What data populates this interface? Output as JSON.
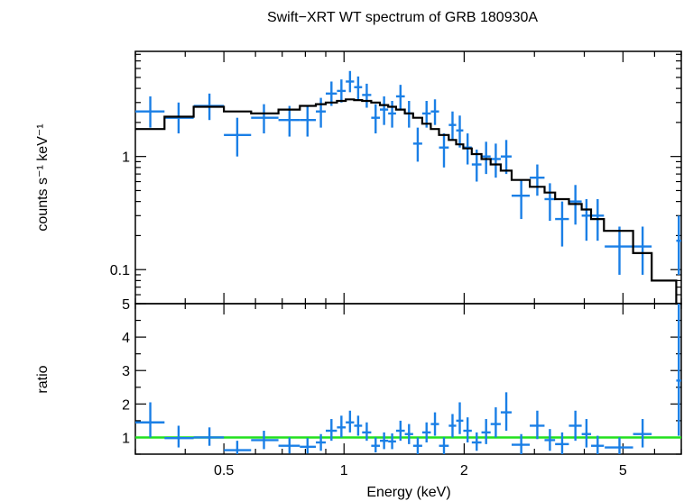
{
  "chart_data": {
    "type": "scatter",
    "title": "Swift−XRT WT spectrum of GRB 180930A",
    "xlabel": "Energy (keV)",
    "x_scale": "log",
    "xlim": [
      0.3,
      7.0
    ],
    "x_ticks": [
      {
        "value": 0.5,
        "label": "0.5"
      },
      {
        "value": 1,
        "label": "1"
      },
      {
        "value": 2,
        "label": "2"
      },
      {
        "value": 5,
        "label": "5"
      }
    ],
    "colors": {
      "data": "#1a7fe6",
      "model": "#000000",
      "unity": "#22e01e"
    },
    "panels": [
      {
        "name": "spectrum",
        "ylabel": "counts s⁻¹ keV⁻¹",
        "y_scale": "log",
        "ylim": [
          0.05,
          8.5
        ],
        "y_ticks": [
          {
            "value": 0.1,
            "label": "0.1"
          },
          {
            "value": 1,
            "label": "1"
          }
        ],
        "series": [
          {
            "kind": "data",
            "points": [
              {
                "x": 0.327,
                "xlo": 0.3,
                "xhi": 0.355,
                "y": 2.5,
                "ylo": 1.8,
                "yhi": 3.4
              },
              {
                "x": 0.385,
                "xlo": 0.355,
                "xhi": 0.42,
                "y": 2.2,
                "ylo": 1.6,
                "yhi": 3.0
              },
              {
                "x": 0.46,
                "xlo": 0.42,
                "xhi": 0.5,
                "y": 2.8,
                "ylo": 2.1,
                "yhi": 3.6
              },
              {
                "x": 0.54,
                "xlo": 0.5,
                "xhi": 0.585,
                "y": 1.55,
                "ylo": 1.0,
                "yhi": 2.2
              },
              {
                "x": 0.63,
                "xlo": 0.585,
                "xhi": 0.685,
                "y": 2.2,
                "ylo": 1.6,
                "yhi": 2.9
              },
              {
                "x": 0.73,
                "xlo": 0.685,
                "xhi": 0.775,
                "y": 2.1,
                "ylo": 1.5,
                "yhi": 2.8
              },
              {
                "x": 0.81,
                "xlo": 0.775,
                "xhi": 0.85,
                "y": 2.1,
                "ylo": 1.5,
                "yhi": 2.8
              },
              {
                "x": 0.875,
                "xlo": 0.85,
                "xhi": 0.9,
                "y": 2.5,
                "ylo": 1.8,
                "yhi": 3.3
              },
              {
                "x": 0.93,
                "xlo": 0.9,
                "xhi": 0.96,
                "y": 3.6,
                "ylo": 2.8,
                "yhi": 4.6
              },
              {
                "x": 0.985,
                "xlo": 0.96,
                "xhi": 1.01,
                "y": 3.8,
                "ylo": 3.0,
                "yhi": 4.8
              },
              {
                "x": 1.035,
                "xlo": 1.01,
                "xhi": 1.06,
                "y": 4.6,
                "ylo": 3.7,
                "yhi": 5.7
              },
              {
                "x": 1.085,
                "xlo": 1.06,
                "xhi": 1.11,
                "y": 4.1,
                "ylo": 3.2,
                "yhi": 5.1
              },
              {
                "x": 1.14,
                "xlo": 1.11,
                "xhi": 1.17,
                "y": 3.5,
                "ylo": 2.7,
                "yhi": 4.4
              },
              {
                "x": 1.2,
                "xlo": 1.17,
                "xhi": 1.23,
                "y": 2.2,
                "ylo": 1.6,
                "yhi": 2.9
              },
              {
                "x": 1.26,
                "xlo": 1.23,
                "xhi": 1.29,
                "y": 2.6,
                "ylo": 1.9,
                "yhi": 3.4
              },
              {
                "x": 1.32,
                "xlo": 1.29,
                "xhi": 1.35,
                "y": 2.4,
                "ylo": 1.8,
                "yhi": 3.1
              },
              {
                "x": 1.385,
                "xlo": 1.35,
                "xhi": 1.42,
                "y": 3.4,
                "ylo": 2.6,
                "yhi": 4.3
              },
              {
                "x": 1.455,
                "xlo": 1.42,
                "xhi": 1.49,
                "y": 2.4,
                "ylo": 1.8,
                "yhi": 3.1
              },
              {
                "x": 1.53,
                "xlo": 1.49,
                "xhi": 1.57,
                "y": 1.3,
                "ylo": 0.9,
                "yhi": 1.8
              },
              {
                "x": 1.61,
                "xlo": 1.57,
                "xhi": 1.65,
                "y": 2.4,
                "ylo": 1.8,
                "yhi": 3.1
              },
              {
                "x": 1.69,
                "xlo": 1.65,
                "xhi": 1.73,
                "y": 2.5,
                "ylo": 1.9,
                "yhi": 3.2
              },
              {
                "x": 1.78,
                "xlo": 1.73,
                "xhi": 1.83,
                "y": 1.2,
                "ylo": 0.8,
                "yhi": 1.6
              },
              {
                "x": 1.87,
                "xlo": 1.83,
                "xhi": 1.91,
                "y": 1.9,
                "ylo": 1.4,
                "yhi": 2.5
              },
              {
                "x": 1.95,
                "xlo": 1.91,
                "xhi": 1.99,
                "y": 1.7,
                "ylo": 1.2,
                "yhi": 2.3
              },
              {
                "x": 2.04,
                "xlo": 1.99,
                "xhi": 2.09,
                "y": 1.2,
                "ylo": 0.85,
                "yhi": 1.6
              },
              {
                "x": 2.15,
                "xlo": 2.09,
                "xhi": 2.21,
                "y": 0.85,
                "ylo": 0.6,
                "yhi": 1.15
              },
              {
                "x": 2.27,
                "xlo": 2.21,
                "xhi": 2.33,
                "y": 1.0,
                "ylo": 0.7,
                "yhi": 1.35
              },
              {
                "x": 2.4,
                "xlo": 2.33,
                "xhi": 2.47,
                "y": 0.95,
                "ylo": 0.65,
                "yhi": 1.3
              },
              {
                "x": 2.55,
                "xlo": 2.47,
                "xhi": 2.63,
                "y": 1.0,
                "ylo": 0.7,
                "yhi": 1.4
              },
              {
                "x": 2.78,
                "xlo": 2.63,
                "xhi": 2.92,
                "y": 0.45,
                "ylo": 0.28,
                "yhi": 0.62
              },
              {
                "x": 3.05,
                "xlo": 2.92,
                "xhi": 3.18,
                "y": 0.65,
                "ylo": 0.45,
                "yhi": 0.85
              },
              {
                "x": 3.28,
                "xlo": 3.18,
                "xhi": 3.38,
                "y": 0.42,
                "ylo": 0.27,
                "yhi": 0.58
              },
              {
                "x": 3.52,
                "xlo": 3.38,
                "xhi": 3.66,
                "y": 0.28,
                "ylo": 0.16,
                "yhi": 0.4
              },
              {
                "x": 3.8,
                "xlo": 3.66,
                "xhi": 3.94,
                "y": 0.4,
                "ylo": 0.25,
                "yhi": 0.56
              },
              {
                "x": 4.05,
                "xlo": 3.94,
                "xhi": 4.16,
                "y": 0.3,
                "ylo": 0.18,
                "yhi": 0.42
              },
              {
                "x": 4.32,
                "xlo": 4.16,
                "xhi": 4.48,
                "y": 0.3,
                "ylo": 0.18,
                "yhi": 0.42
              },
              {
                "x": 4.9,
                "xlo": 4.5,
                "xhi": 5.3,
                "y": 0.16,
                "ylo": 0.09,
                "yhi": 0.24
              },
              {
                "x": 5.6,
                "xlo": 5.3,
                "xhi": 5.9,
                "y": 0.16,
                "ylo": 0.09,
                "yhi": 0.24
              },
              {
                "x": 6.9,
                "xlo": 6.8,
                "xhi": 7.0,
                "y": 0.18,
                "ylo": 0.09,
                "yhi": 0.3
              }
            ]
          },
          {
            "kind": "model",
            "edges": [
              0.3,
              0.355,
              0.42,
              0.5,
              0.585,
              0.685,
              0.775,
              0.85,
              0.9,
              0.96,
              1.01,
              1.06,
              1.11,
              1.17,
              1.23,
              1.29,
              1.35,
              1.42,
              1.49,
              1.57,
              1.65,
              1.73,
              1.83,
              1.91,
              1.99,
              2.09,
              2.21,
              2.33,
              2.47,
              2.63,
              2.92,
              3.18,
              3.38,
              3.66,
              3.94,
              4.16,
              4.48,
              5.3,
              5.9,
              6.8,
              7.0
            ],
            "values": [
              1.75,
              2.25,
              2.75,
              2.5,
              2.4,
              2.6,
              2.8,
              2.9,
              3.0,
              3.1,
              3.2,
              3.15,
              3.1,
              3.0,
              2.85,
              2.75,
              2.6,
              2.4,
              2.2,
              1.95,
              1.75,
              1.55,
              1.4,
              1.28,
              1.18,
              1.05,
              0.95,
              0.85,
              0.75,
              0.62,
              0.54,
              0.48,
              0.42,
              0.38,
              0.34,
              0.28,
              0.22,
              0.14,
              0.08,
              0.05
            ]
          }
        ]
      },
      {
        "name": "ratio",
        "ylabel": "ratio",
        "y_scale": "linear",
        "ylim": [
          0.5,
          5.0
        ],
        "y_ticks": [
          {
            "value": 1,
            "label": "1"
          },
          {
            "value": 2,
            "label": "2"
          },
          {
            "value": 3,
            "label": "3"
          },
          {
            "value": 4,
            "label": "4"
          },
          {
            "value": 5,
            "label": "5"
          }
        ],
        "reference_y": 1.0,
        "series": [
          {
            "kind": "data",
            "points": [
              {
                "x": 0.327,
                "xlo": 0.3,
                "xhi": 0.355,
                "y": 1.45,
                "ylo": 1.0,
                "yhi": 2.05
              },
              {
                "x": 0.385,
                "xlo": 0.355,
                "xhi": 0.42,
                "y": 0.98,
                "ylo": 0.7,
                "yhi": 1.35
              },
              {
                "x": 0.46,
                "xlo": 0.42,
                "xhi": 0.5,
                "y": 1.0,
                "ylo": 0.75,
                "yhi": 1.3
              },
              {
                "x": 0.54,
                "xlo": 0.5,
                "xhi": 0.585,
                "y": 0.62,
                "ylo": 0.45,
                "yhi": 0.9
              },
              {
                "x": 0.63,
                "xlo": 0.585,
                "xhi": 0.685,
                "y": 0.92,
                "ylo": 0.65,
                "yhi": 1.2
              },
              {
                "x": 0.73,
                "xlo": 0.685,
                "xhi": 0.775,
                "y": 0.75,
                "ylo": 0.52,
                "yhi": 1.0
              },
              {
                "x": 0.81,
                "xlo": 0.775,
                "xhi": 0.85,
                "y": 0.72,
                "ylo": 0.52,
                "yhi": 0.98
              },
              {
                "x": 0.875,
                "xlo": 0.85,
                "xhi": 0.9,
                "y": 0.85,
                "ylo": 0.6,
                "yhi": 1.1
              },
              {
                "x": 0.93,
                "xlo": 0.9,
                "xhi": 0.96,
                "y": 1.2,
                "ylo": 0.9,
                "yhi": 1.55
              },
              {
                "x": 0.985,
                "xlo": 0.96,
                "xhi": 1.01,
                "y": 1.3,
                "ylo": 1.0,
                "yhi": 1.65
              },
              {
                "x": 1.035,
                "xlo": 1.01,
                "xhi": 1.06,
                "y": 1.45,
                "ylo": 1.15,
                "yhi": 1.8
              },
              {
                "x": 1.085,
                "xlo": 1.06,
                "xhi": 1.11,
                "y": 1.35,
                "ylo": 1.05,
                "yhi": 1.65
              },
              {
                "x": 1.14,
                "xlo": 1.11,
                "xhi": 1.17,
                "y": 1.15,
                "ylo": 0.9,
                "yhi": 1.45
              },
              {
                "x": 1.2,
                "xlo": 1.17,
                "xhi": 1.23,
                "y": 0.75,
                "ylo": 0.55,
                "yhi": 1.0
              },
              {
                "x": 1.26,
                "xlo": 1.23,
                "xhi": 1.29,
                "y": 0.9,
                "ylo": 0.65,
                "yhi": 1.15
              },
              {
                "x": 1.32,
                "xlo": 1.29,
                "xhi": 1.35,
                "y": 0.88,
                "ylo": 0.65,
                "yhi": 1.12
              },
              {
                "x": 1.385,
                "xlo": 1.35,
                "xhi": 1.42,
                "y": 1.2,
                "ylo": 0.9,
                "yhi": 1.5
              },
              {
                "x": 1.455,
                "xlo": 1.42,
                "xhi": 1.49,
                "y": 1.1,
                "ylo": 0.8,
                "yhi": 1.4
              },
              {
                "x": 1.53,
                "xlo": 1.49,
                "xhi": 1.57,
                "y": 0.75,
                "ylo": 0.5,
                "yhi": 1.0
              },
              {
                "x": 1.61,
                "xlo": 1.57,
                "xhi": 1.65,
                "y": 1.15,
                "ylo": 0.85,
                "yhi": 1.45
              },
              {
                "x": 1.69,
                "xlo": 1.65,
                "xhi": 1.73,
                "y": 1.4,
                "ylo": 1.05,
                "yhi": 1.75
              },
              {
                "x": 1.78,
                "xlo": 1.73,
                "xhi": 1.83,
                "y": 0.75,
                "ylo": 0.5,
                "yhi": 1.0
              },
              {
                "x": 1.87,
                "xlo": 1.83,
                "xhi": 1.91,
                "y": 1.35,
                "ylo": 1.0,
                "yhi": 1.7
              },
              {
                "x": 1.95,
                "xlo": 1.91,
                "xhi": 1.99,
                "y": 1.5,
                "ylo": 1.1,
                "yhi": 2.05
              },
              {
                "x": 2.04,
                "xlo": 1.99,
                "xhi": 2.09,
                "y": 1.2,
                "ylo": 0.85,
                "yhi": 1.6
              },
              {
                "x": 2.15,
                "xlo": 2.09,
                "xhi": 2.21,
                "y": 0.85,
                "ylo": 0.6,
                "yhi": 1.15
              },
              {
                "x": 2.27,
                "xlo": 2.21,
                "xhi": 2.33,
                "y": 1.15,
                "ylo": 0.8,
                "yhi": 1.55
              },
              {
                "x": 2.4,
                "xlo": 2.33,
                "xhi": 2.47,
                "y": 1.4,
                "ylo": 1.0,
                "yhi": 1.9
              },
              {
                "x": 2.55,
                "xlo": 2.47,
                "xhi": 2.63,
                "y": 1.75,
                "ylo": 1.2,
                "yhi": 2.35
              },
              {
                "x": 2.78,
                "xlo": 2.63,
                "xhi": 2.92,
                "y": 0.78,
                "ylo": 0.5,
                "yhi": 1.1
              },
              {
                "x": 3.05,
                "xlo": 2.92,
                "xhi": 3.18,
                "y": 1.35,
                "ylo": 0.95,
                "yhi": 1.8
              },
              {
                "x": 3.28,
                "xlo": 3.18,
                "xhi": 3.38,
                "y": 0.92,
                "ylo": 0.6,
                "yhi": 1.25
              },
              {
                "x": 3.52,
                "xlo": 3.38,
                "xhi": 3.66,
                "y": 0.8,
                "ylo": 0.5,
                "yhi": 1.15
              },
              {
                "x": 3.8,
                "xlo": 3.66,
                "xhi": 3.94,
                "y": 1.35,
                "ylo": 0.9,
                "yhi": 1.8
              },
              {
                "x": 4.05,
                "xlo": 3.94,
                "xhi": 4.16,
                "y": 1.1,
                "ylo": 0.7,
                "yhi": 1.55
              },
              {
                "x": 4.32,
                "xlo": 4.16,
                "xhi": 4.48,
                "y": 0.75,
                "ylo": 0.45,
                "yhi": 1.05
              },
              {
                "x": 4.9,
                "xlo": 4.5,
                "xhi": 5.3,
                "y": 0.7,
                "ylo": 0.45,
                "yhi": 1.0
              },
              {
                "x": 5.6,
                "xlo": 5.3,
                "xhi": 5.9,
                "y": 1.1,
                "ylo": 0.7,
                "yhi": 1.55
              },
              {
                "x": 6.9,
                "xlo": 6.8,
                "xhi": 7.0,
                "y": 2.7,
                "ylo": 1.05,
                "yhi": 5.0
              }
            ]
          }
        ]
      }
    ]
  }
}
